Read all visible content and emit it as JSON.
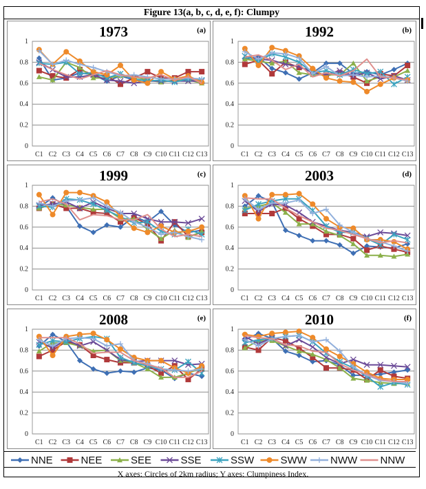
{
  "figure_title": "Figure 13(a, b, c, d, e, f):  Clumpy",
  "caption": "X axes: Circles of 2km radius; Y axes: Clumpiness Index.",
  "series_styles": [
    {
      "name": "NNE",
      "color": "#3e6fb4",
      "marker": "diamond"
    },
    {
      "name": "NEE",
      "color": "#b0393a",
      "marker": "square"
    },
    {
      "name": "SEE",
      "color": "#8bb04a",
      "marker": "triangle"
    },
    {
      "name": "SSE",
      "color": "#6b4a97",
      "marker": "x"
    },
    {
      "name": "SSW",
      "color": "#3ba3bf",
      "marker": "star"
    },
    {
      "name": "SWW",
      "color": "#ee8a2a",
      "marker": "circle"
    },
    {
      "name": "NWW",
      "color": "#92b0dc",
      "marker": "plus"
    },
    {
      "name": "NNW",
      "color": "#df8f8d",
      "marker": "none"
    }
  ],
  "legend": [
    "NNE",
    "NEE",
    "SEE",
    "SSE",
    "SSW",
    "SWW",
    "NWW",
    "NNW"
  ],
  "chart_data": [
    {
      "type": "line",
      "title": "1973",
      "label": "(a)",
      "categories": [
        "C1",
        "C2",
        "C3",
        "C4",
        "C5",
        "C6",
        "C7",
        "C8",
        "C9",
        "C10",
        "C11",
        "C12",
        "C13"
      ],
      "yticks": [
        "0",
        "0.2",
        "0.4",
        "0.6",
        "0.8",
        "1"
      ],
      "ylim": [
        0,
        1
      ],
      "grid": true,
      "series": [
        {
          "name": "NNE",
          "values": [
            0.84,
            0.63,
            0.65,
            0.7,
            0.68,
            0.62,
            0.67,
            0.63,
            0.63,
            0.62,
            0.62,
            0.64,
            0.61
          ]
        },
        {
          "name": "NEE",
          "values": [
            0.72,
            0.67,
            0.65,
            0.73,
            0.68,
            0.67,
            0.59,
            0.65,
            0.71,
            0.65,
            0.65,
            0.71,
            0.71
          ]
        },
        {
          "name": "SEE",
          "values": [
            0.66,
            0.63,
            0.8,
            0.75,
            0.65,
            0.65,
            0.67,
            0.66,
            0.63,
            0.61,
            0.63,
            0.63,
            0.6
          ]
        },
        {
          "name": "SSE",
          "values": [
            0.8,
            0.73,
            0.66,
            0.66,
            0.68,
            0.63,
            0.62,
            0.6,
            0.62,
            0.62,
            0.62,
            0.62,
            0.62
          ]
        },
        {
          "name": "SSW",
          "values": [
            0.79,
            0.78,
            0.8,
            0.69,
            0.7,
            0.65,
            0.69,
            0.64,
            0.62,
            0.63,
            0.61,
            0.64,
            0.63
          ]
        },
        {
          "name": "SWW",
          "values": [
            0.92,
            0.78,
            0.9,
            0.81,
            0.71,
            0.68,
            0.77,
            0.63,
            0.6,
            0.71,
            0.64,
            0.67,
            0.61
          ]
        },
        {
          "name": "NWW",
          "values": [
            0.91,
            0.78,
            0.82,
            0.78,
            0.75,
            0.71,
            0.67,
            0.68,
            0.66,
            0.64,
            0.64,
            0.65,
            0.64
          ]
        },
        {
          "name": "NNW",
          "values": [
            0.79,
            0.73,
            0.68,
            0.64,
            0.68,
            0.72,
            0.68,
            0.66,
            0.65,
            0.68,
            0.63,
            0.66,
            0.6
          ]
        }
      ]
    },
    {
      "type": "line",
      "title": "1992",
      "label": "(b)",
      "categories": [
        "C1",
        "C2",
        "C3",
        "C4",
        "C5",
        "C6",
        "C7",
        "C8",
        "C9",
        "C10",
        "C11",
        "C12",
        "C13"
      ],
      "yticks": [
        "0",
        "0.2",
        "0.4",
        "0.6",
        "0.8",
        "1"
      ],
      "ylim": [
        0,
        1
      ],
      "grid": true,
      "series": [
        {
          "name": "NNE",
          "values": [
            0.83,
            0.85,
            0.74,
            0.7,
            0.64,
            0.7,
            0.79,
            0.79,
            0.69,
            0.71,
            0.68,
            0.73,
            0.79
          ]
        },
        {
          "name": "NEE",
          "values": [
            0.78,
            0.82,
            0.69,
            0.8,
            0.75,
            0.72,
            0.67,
            0.7,
            0.66,
            0.6,
            0.69,
            0.67,
            0.77
          ]
        },
        {
          "name": "SEE",
          "values": [
            0.83,
            0.81,
            0.79,
            0.81,
            0.7,
            0.68,
            0.68,
            0.68,
            0.79,
            0.62,
            0.66,
            0.66,
            0.72
          ]
        },
        {
          "name": "SSE",
          "values": [
            0.86,
            0.83,
            0.82,
            0.78,
            0.76,
            0.7,
            0.68,
            0.72,
            0.67,
            0.7,
            0.64,
            0.67,
            0.63
          ]
        },
        {
          "name": "SSW",
          "values": [
            0.86,
            0.81,
            0.88,
            0.85,
            0.8,
            0.7,
            0.72,
            0.68,
            0.73,
            0.69,
            0.71,
            0.59,
            0.66
          ]
        },
        {
          "name": "SWW",
          "values": [
            0.93,
            0.77,
            0.94,
            0.91,
            0.86,
            0.74,
            0.65,
            0.62,
            0.61,
            0.52,
            0.59,
            0.65,
            0.63
          ]
        },
        {
          "name": "NWW",
          "values": [
            0.9,
            0.83,
            0.89,
            0.88,
            0.84,
            0.69,
            0.76,
            0.67,
            0.68,
            0.66,
            0.67,
            0.65,
            0.62
          ]
        },
        {
          "name": "NNW",
          "values": [
            0.85,
            0.87,
            0.82,
            0.73,
            0.78,
            0.66,
            0.7,
            0.67,
            0.72,
            0.83,
            0.66,
            0.65,
            0.63
          ]
        }
      ]
    },
    {
      "type": "line",
      "title": "1999",
      "label": "(c)",
      "categories": [
        "C1",
        "C2",
        "C3",
        "C4",
        "C5",
        "C6",
        "C7",
        "C8",
        "C9",
        "C10",
        "C11",
        "C12",
        "C13"
      ],
      "yticks": [
        "0",
        "0.2",
        "0.4",
        "0.6",
        "0.8",
        "1"
      ],
      "ylim": [
        0,
        1
      ],
      "grid": true,
      "series": [
        {
          "name": "NNE",
          "values": [
            0.79,
            0.88,
            0.8,
            0.61,
            0.55,
            0.62,
            0.6,
            0.7,
            0.65,
            0.75,
            0.62,
            0.55,
            0.57
          ]
        },
        {
          "name": "NEE",
          "values": [
            0.78,
            0.82,
            0.78,
            0.78,
            0.74,
            0.73,
            0.65,
            0.69,
            0.63,
            0.47,
            0.65,
            0.51,
            0.55
          ]
        },
        {
          "name": "SEE",
          "values": [
            0.78,
            0.82,
            0.81,
            0.79,
            0.77,
            0.77,
            0.68,
            0.68,
            0.58,
            0.49,
            0.57,
            0.5,
            0.56
          ]
        },
        {
          "name": "SSE",
          "values": [
            0.81,
            0.82,
            0.84,
            0.78,
            0.84,
            0.78,
            0.73,
            0.73,
            0.68,
            0.65,
            0.65,
            0.64,
            0.68
          ]
        },
        {
          "name": "SSW",
          "values": [
            0.8,
            0.79,
            0.87,
            0.86,
            0.82,
            0.76,
            0.7,
            0.64,
            0.65,
            0.56,
            0.53,
            0.58,
            0.53
          ]
        },
        {
          "name": "SWW",
          "values": [
            0.91,
            0.72,
            0.93,
            0.93,
            0.9,
            0.84,
            0.7,
            0.59,
            0.55,
            0.61,
            0.55,
            0.56,
            0.6
          ]
        },
        {
          "name": "NWW",
          "values": [
            0.83,
            0.8,
            0.85,
            0.86,
            0.88,
            0.8,
            0.74,
            0.65,
            0.6,
            0.53,
            0.55,
            0.51,
            0.48
          ]
        },
        {
          "name": "NNW",
          "values": [
            0.84,
            0.87,
            0.82,
            0.67,
            0.72,
            0.71,
            0.67,
            0.67,
            0.72,
            0.58,
            0.51,
            0.53,
            0.51
          ]
        }
      ]
    },
    {
      "type": "line",
      "title": "2003",
      "label": "(d)",
      "categories": [
        "C1",
        "C2",
        "C3",
        "C4",
        "C5",
        "C6",
        "C7",
        "C8",
        "C9",
        "C10",
        "C11",
        "C12",
        "C13"
      ],
      "yticks": [
        "0",
        "0.2",
        "0.4",
        "0.6",
        "0.8",
        "1"
      ],
      "ylim": [
        0,
        1
      ],
      "grid": true,
      "series": [
        {
          "name": "NNE",
          "values": [
            0.8,
            0.9,
            0.84,
            0.57,
            0.52,
            0.47,
            0.47,
            0.43,
            0.35,
            0.42,
            0.41,
            0.4,
            0.44
          ]
        },
        {
          "name": "NEE",
          "values": [
            0.73,
            0.73,
            0.73,
            0.78,
            0.68,
            0.61,
            0.53,
            0.53,
            0.49,
            0.38,
            0.42,
            0.39,
            0.36
          ]
        },
        {
          "name": "SEE",
          "values": [
            0.78,
            0.8,
            0.83,
            0.74,
            0.63,
            0.63,
            0.56,
            0.52,
            0.44,
            0.33,
            0.33,
            0.32,
            0.34
          ]
        },
        {
          "name": "SSE",
          "values": [
            0.85,
            0.75,
            0.82,
            0.81,
            0.74,
            0.65,
            0.61,
            0.57,
            0.55,
            0.51,
            0.55,
            0.54,
            0.52
          ]
        },
        {
          "name": "SSW",
          "values": [
            0.76,
            0.82,
            0.85,
            0.87,
            0.87,
            0.76,
            0.61,
            0.55,
            0.55,
            0.49,
            0.43,
            0.53,
            0.48
          ]
        },
        {
          "name": "SWW",
          "values": [
            0.9,
            0.68,
            0.91,
            0.91,
            0.92,
            0.82,
            0.68,
            0.6,
            0.59,
            0.48,
            0.48,
            0.46,
            0.39
          ]
        },
        {
          "name": "NWW",
          "values": [
            0.87,
            0.77,
            0.83,
            0.83,
            0.86,
            0.73,
            0.77,
            0.62,
            0.55,
            0.49,
            0.46,
            0.42,
            0.37
          ]
        },
        {
          "name": "NNW",
          "values": [
            0.88,
            0.87,
            0.87,
            0.78,
            0.71,
            0.65,
            0.59,
            0.57,
            0.53,
            0.49,
            0.45,
            0.47,
            0.45
          ]
        }
      ]
    },
    {
      "type": "line",
      "title": "2008",
      "label": "(e)",
      "categories": [
        "C1",
        "C2",
        "C3",
        "C4",
        "C5",
        "C6",
        "C7",
        "C8",
        "C9",
        "C10",
        "C11",
        "C12",
        "C13"
      ],
      "yticks": [
        "0",
        "0.2",
        "0.4",
        "0.6",
        "0.8",
        "1"
      ],
      "ylim": [
        0,
        1
      ],
      "grid": true,
      "series": [
        {
          "name": "NNE",
          "values": [
            0.84,
            0.95,
            0.88,
            0.7,
            0.62,
            0.58,
            0.6,
            0.59,
            0.63,
            0.61,
            0.53,
            0.58,
            0.55
          ]
        },
        {
          "name": "NEE",
          "values": [
            0.74,
            0.8,
            0.88,
            0.85,
            0.75,
            0.71,
            0.68,
            0.68,
            0.65,
            0.58,
            0.65,
            0.52,
            0.62
          ]
        },
        {
          "name": "SEE",
          "values": [
            0.79,
            0.87,
            0.87,
            0.84,
            0.79,
            0.8,
            0.7,
            0.68,
            0.62,
            0.54,
            0.54,
            0.58,
            0.63
          ]
        },
        {
          "name": "SSE",
          "values": [
            0.88,
            0.82,
            0.9,
            0.84,
            0.88,
            0.8,
            0.71,
            0.69,
            0.7,
            0.7,
            0.7,
            0.66,
            0.67
          ]
        },
        {
          "name": "SSW",
          "values": [
            0.85,
            0.89,
            0.88,
            0.91,
            0.93,
            0.91,
            0.73,
            0.68,
            0.65,
            0.62,
            0.61,
            0.69,
            0.58
          ]
        },
        {
          "name": "SWW",
          "values": [
            0.93,
            0.75,
            0.93,
            0.95,
            0.96,
            0.9,
            0.81,
            0.73,
            0.7,
            0.7,
            0.63,
            0.58,
            0.65
          ]
        },
        {
          "name": "NWW",
          "values": [
            0.9,
            0.84,
            0.91,
            0.92,
            0.91,
            0.84,
            0.86,
            0.7,
            0.67,
            0.62,
            0.61,
            0.6,
            0.62
          ]
        },
        {
          "name": "NNW",
          "values": [
            0.92,
            0.92,
            0.92,
            0.86,
            0.77,
            0.78,
            0.78,
            0.7,
            0.66,
            0.63,
            0.54,
            0.54,
            0.6
          ]
        }
      ]
    },
    {
      "type": "line",
      "title": "2010",
      "label": "(f)",
      "categories": [
        "C1",
        "C2",
        "C3",
        "C4",
        "C5",
        "C6",
        "C7",
        "C8",
        "C9",
        "C10",
        "C11",
        "C12",
        "C13"
      ],
      "yticks": [
        "0",
        "0.2",
        "0.4",
        "0.6",
        "0.8",
        "1"
      ],
      "ylim": [
        0,
        1
      ],
      "grid": true,
      "series": [
        {
          "name": "NNE",
          "values": [
            0.9,
            0.96,
            0.91,
            0.79,
            0.75,
            0.69,
            0.7,
            0.66,
            0.56,
            0.56,
            0.57,
            0.59,
            0.61
          ]
        },
        {
          "name": "NEE",
          "values": [
            0.83,
            0.8,
            0.92,
            0.89,
            0.82,
            0.73,
            0.63,
            0.63,
            0.61,
            0.52,
            0.61,
            0.55,
            0.53
          ]
        },
        {
          "name": "SEE",
          "values": [
            0.82,
            0.89,
            0.89,
            0.84,
            0.79,
            0.76,
            0.71,
            0.63,
            0.53,
            0.51,
            0.49,
            0.48,
            0.48
          ]
        },
        {
          "name": "SSE",
          "values": [
            0.93,
            0.86,
            0.92,
            0.84,
            0.9,
            0.83,
            0.73,
            0.67,
            0.71,
            0.66,
            0.66,
            0.65,
            0.64
          ]
        },
        {
          "name": "SSW",
          "values": [
            0.87,
            0.9,
            0.91,
            0.93,
            0.94,
            0.88,
            0.77,
            0.69,
            0.63,
            0.55,
            0.45,
            0.49,
            0.47
          ]
        },
        {
          "name": "SWW",
          "values": [
            0.95,
            0.93,
            0.96,
            0.97,
            0.98,
            0.92,
            0.81,
            0.74,
            0.67,
            0.59,
            0.53,
            0.52,
            0.52
          ]
        },
        {
          "name": "NWW",
          "values": [
            0.9,
            0.84,
            0.91,
            0.93,
            0.94,
            0.88,
            0.9,
            0.79,
            0.64,
            0.56,
            0.51,
            0.5,
            0.48
          ]
        },
        {
          "name": "NNW",
          "values": [
            0.94,
            0.92,
            0.91,
            0.85,
            0.84,
            0.79,
            0.78,
            0.67,
            0.61,
            0.57,
            0.52,
            0.5,
            0.5
          ]
        }
      ]
    }
  ]
}
